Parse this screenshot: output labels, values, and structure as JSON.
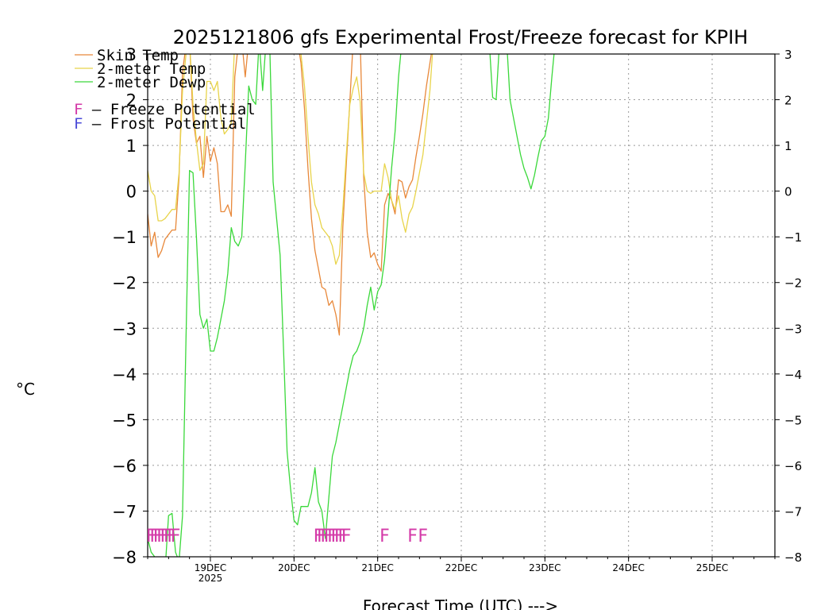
{
  "chart_data": {
    "type": "line",
    "title": "2025121806 gfs Experimental Frost/Freeze forecast for KPIH",
    "xlabel": "Forecast Time (UTC) --->",
    "ylabel": "°C",
    "ylim": [
      -8,
      3
    ],
    "xlim_hours": [
      0,
      180
    ],
    "grid": true,
    "legend_position": "top-left",
    "y_ticks": [
      "−8",
      "−7",
      "−6",
      "−5",
      "−4",
      "−3",
      "−2",
      "−1",
      "0",
      "1",
      "2",
      "3"
    ],
    "y_ticks_right": [
      "−8",
      "−7",
      "−6",
      "−5",
      "−4",
      "−3",
      "−2",
      "−1",
      "0",
      "1",
      "2",
      "3"
    ],
    "x_ticks": [
      {
        "hour": 18,
        "label": "19DEC",
        "sublabel": "2025"
      },
      {
        "hour": 42,
        "label": "20DEC",
        "sublabel": ""
      },
      {
        "hour": 66,
        "label": "21DEC",
        "sublabel": ""
      },
      {
        "hour": 90,
        "label": "22DEC",
        "sublabel": ""
      },
      {
        "hour": 114,
        "label": "23DEC",
        "sublabel": ""
      },
      {
        "hour": 138,
        "label": "24DEC",
        "sublabel": ""
      },
      {
        "hour": 162,
        "label": "25DEC",
        "sublabel": ""
      }
    ],
    "legend": [
      {
        "name": "Skin Temp",
        "color": "#e8883a"
      },
      {
        "name": "2-meter Temp",
        "color": "#e8d44a"
      },
      {
        "name": "2-meter Dewp",
        "color": "#3ad83a"
      }
    ],
    "potential_legend": [
      {
        "marker": "F",
        "text": " – Freeze Potential",
        "color": "#d43aa8"
      },
      {
        "marker": "F",
        "text": " – Frost Potential",
        "color": "#4a4ad8"
      }
    ],
    "series": [
      {
        "name": "Skin Temp",
        "color": "#e8883a",
        "x": [
          0,
          1,
          2,
          3,
          4,
          5,
          6,
          7,
          8,
          9,
          10,
          11,
          12,
          13,
          14,
          15,
          16,
          17,
          18,
          19,
          20,
          21,
          22,
          23,
          24,
          25,
          26,
          27,
          28,
          29,
          30,
          31,
          32,
          33,
          34,
          35,
          36,
          37,
          38,
          39,
          40,
          41,
          42,
          43,
          44,
          45,
          46,
          47,
          48,
          49,
          50,
          51,
          52,
          53,
          54,
          55,
          56,
          57,
          58,
          59,
          60,
          61,
          62,
          63,
          64,
          65,
          66,
          67,
          68,
          69,
          70,
          71,
          72,
          73,
          74,
          75,
          76,
          77,
          78,
          79,
          80,
          81,
          82,
          83,
          84,
          85,
          86,
          87,
          88
        ],
        "values": [
          -0.5,
          -1.2,
          -0.9,
          -1.45,
          -1.3,
          -1.05,
          -0.95,
          -0.85,
          -0.85,
          0.3,
          2.6,
          3.2,
          3.3,
          1.6,
          1.05,
          1.2,
          0.3,
          1.2,
          0.65,
          0.95,
          0.6,
          -0.45,
          -0.45,
          -0.3,
          -0.55,
          2.5,
          3.2,
          3.3,
          2.5,
          3.3,
          3.3,
          3.3,
          3.3,
          3.3,
          3.3,
          3.3,
          3.3,
          3.3,
          3.3,
          3.3,
          3.3,
          3.3,
          3.3,
          3.3,
          2.8,
          1.8,
          0.5,
          -0.6,
          -1.3,
          -1.7,
          -2.1,
          -2.15,
          -2.5,
          -2.4,
          -2.7,
          -3.15,
          -0.8,
          0.6,
          1.95,
          3.3,
          3.3,
          3.3,
          0.3,
          -0.9,
          -1.45,
          -1.35,
          -1.6,
          -1.75,
          -0.3,
          -0.05,
          -0.2,
          -0.5,
          0.25,
          0.2,
          -0.15,
          0.1,
          0.25,
          0.75,
          1.2,
          1.7,
          2.3,
          2.8,
          3.3,
          3.3,
          3.3,
          3.3,
          3.3,
          3.3,
          3.3
        ]
      },
      {
        "name": "2-meter Temp",
        "color": "#e8d44a",
        "x": [
          0,
          1,
          2,
          3,
          4,
          5,
          6,
          7,
          8,
          9,
          10,
          11,
          12,
          13,
          14,
          15,
          16,
          17,
          18,
          19,
          20,
          21,
          22,
          23,
          24,
          25,
          26,
          27,
          28,
          29,
          30,
          31,
          32,
          33,
          34,
          35,
          36,
          37,
          38,
          39,
          40,
          41,
          42,
          43,
          44,
          45,
          46,
          47,
          48,
          49,
          50,
          51,
          52,
          53,
          54,
          55,
          56,
          57,
          58,
          59,
          60,
          61,
          62,
          63,
          64,
          65,
          66,
          67,
          68,
          69,
          70,
          71,
          72,
          73,
          74,
          75,
          76,
          77,
          78,
          79,
          80,
          81,
          82,
          83,
          84,
          85,
          86,
          87,
          88
        ],
        "values": [
          0.45,
          0.0,
          -0.1,
          -0.65,
          -0.65,
          -0.6,
          -0.5,
          -0.4,
          -0.4,
          0.4,
          2.2,
          3.0,
          3.3,
          1.9,
          1.1,
          0.45,
          0.6,
          2.4,
          2.4,
          2.2,
          2.4,
          1.6,
          1.25,
          1.35,
          1.5,
          3.3,
          3.3,
          3.3,
          3.3,
          3.3,
          3.3,
          3.3,
          3.3,
          3.3,
          3.3,
          3.3,
          3.3,
          3.3,
          3.3,
          3.3,
          3.3,
          3.3,
          3.3,
          3.3,
          3.0,
          2.3,
          1.2,
          0.2,
          -0.3,
          -0.5,
          -0.8,
          -0.9,
          -1.0,
          -1.2,
          -1.6,
          -1.4,
          -0.4,
          0.8,
          1.9,
          2.25,
          2.5,
          1.95,
          0.4,
          0.0,
          -0.05,
          -0.0,
          0.0,
          0.0,
          0.6,
          0.3,
          -0.2,
          -0.4,
          -0.1,
          -0.6,
          -0.9,
          -0.5,
          -0.35,
          0.0,
          0.4,
          0.8,
          1.5,
          2.2,
          3.3,
          3.3,
          3.3,
          3.3,
          3.3,
          3.3,
          3.3
        ]
      },
      {
        "name": "2-meter Dewp",
        "color": "#3ad83a",
        "x": [
          0,
          1,
          2,
          3,
          4,
          5,
          6,
          7,
          8,
          9,
          10,
          11,
          12,
          13,
          14,
          15,
          16,
          17,
          18,
          19,
          20,
          21,
          22,
          23,
          24,
          25,
          26,
          27,
          28,
          29,
          30,
          31,
          32,
          33,
          34,
          35,
          36,
          37,
          38,
          39,
          40,
          41,
          42,
          43,
          44,
          45,
          46,
          47,
          48,
          49,
          50,
          51,
          52,
          53,
          54,
          55,
          56,
          57,
          58,
          59,
          60,
          61,
          62,
          63,
          64,
          65,
          66,
          67,
          68,
          69,
          70,
          71,
          72,
          73,
          74,
          75,
          76,
          77,
          78,
          79,
          80,
          81,
          82,
          83,
          84,
          85,
          86,
          87,
          88,
          89,
          90,
          91,
          92,
          93,
          94,
          95,
          96,
          97,
          98,
          99,
          100,
          101,
          102,
          103,
          104,
          105,
          106,
          107,
          108,
          109,
          110,
          111,
          112,
          113,
          114,
          115,
          116,
          117,
          118,
          119
        ],
        "values": [
          -7.6,
          -7.9,
          -8.0,
          -8.2,
          -8.3,
          -8.3,
          -7.1,
          -7.05,
          -7.9,
          -8.1,
          -7.1,
          -3.2,
          0.45,
          0.4,
          -1.0,
          -2.7,
          -3.0,
          -2.8,
          -3.5,
          -3.5,
          -3.2,
          -2.8,
          -2.4,
          -1.8,
          -0.8,
          -1.1,
          -1.2,
          -1.0,
          0.6,
          2.3,
          2.0,
          1.9,
          3.3,
          2.2,
          3.3,
          3.3,
          0.2,
          -0.6,
          -1.4,
          -3.5,
          -5.7,
          -6.5,
          -7.2,
          -7.3,
          -6.9,
          -6.9,
          -6.9,
          -6.6,
          -6.05,
          -6.8,
          -7.0,
          -7.6,
          -6.7,
          -5.8,
          -5.5,
          -5.1,
          -4.7,
          -4.3,
          -3.9,
          -3.6,
          -3.5,
          -3.3,
          -3.0,
          -2.5,
          -2.1,
          -2.6,
          -2.2,
          -2.05,
          -1.5,
          -0.5,
          0.5,
          1.3,
          2.5,
          3.3,
          3.3,
          3.3,
          3.3,
          3.3,
          3.3,
          3.3,
          3.3,
          3.3,
          3.3,
          3.3,
          3.3,
          3.3,
          3.3,
          3.3,
          3.3,
          3.3,
          3.3,
          3.3,
          3.3,
          3.3,
          3.3,
          3.3,
          3.3,
          3.3,
          3.3,
          2.05,
          2.0,
          3.3,
          3.3,
          3.3,
          2.0,
          1.6,
          1.2,
          0.8,
          0.5,
          0.3,
          0.05,
          0.35,
          0.75,
          1.1,
          1.2,
          1.6,
          2.5,
          3.3,
          3.3,
          3.3
        ]
      }
    ],
    "potential_marks": [
      {
        "hour": 1,
        "text": "F",
        "color": "#d43aa8"
      },
      {
        "hour": 2,
        "text": "F",
        "color": "#d43aa8"
      },
      {
        "hour": 3,
        "text": "F",
        "color": "#d43aa8"
      },
      {
        "hour": 4,
        "text": "F",
        "color": "#d43aa8"
      },
      {
        "hour": 5,
        "text": "F",
        "color": "#d43aa8"
      },
      {
        "hour": 6,
        "text": "F",
        "color": "#d43aa8"
      },
      {
        "hour": 7,
        "text": "F",
        "color": "#d43aa8"
      },
      {
        "hour": 8,
        "text": "F",
        "color": "#d43aa8"
      },
      {
        "hour": 49,
        "text": "F",
        "color": "#d43aa8"
      },
      {
        "hour": 50,
        "text": "F",
        "color": "#d43aa8"
      },
      {
        "hour": 51,
        "text": "F",
        "color": "#d43aa8"
      },
      {
        "hour": 52,
        "text": "F",
        "color": "#d43aa8"
      },
      {
        "hour": 53,
        "text": "F",
        "color": "#d43aa8"
      },
      {
        "hour": 54,
        "text": "F",
        "color": "#d43aa8"
      },
      {
        "hour": 55,
        "text": "F",
        "color": "#d43aa8"
      },
      {
        "hour": 56,
        "text": "F",
        "color": "#d43aa8"
      },
      {
        "hour": 57,
        "text": "F",
        "color": "#d43aa8"
      },
      {
        "hour": 68,
        "text": "F",
        "color": "#d43aa8"
      },
      {
        "hour": 76,
        "text": "F",
        "color": "#d43aa8"
      },
      {
        "hour": 79,
        "text": "F",
        "color": "#d43aa8"
      }
    ]
  }
}
